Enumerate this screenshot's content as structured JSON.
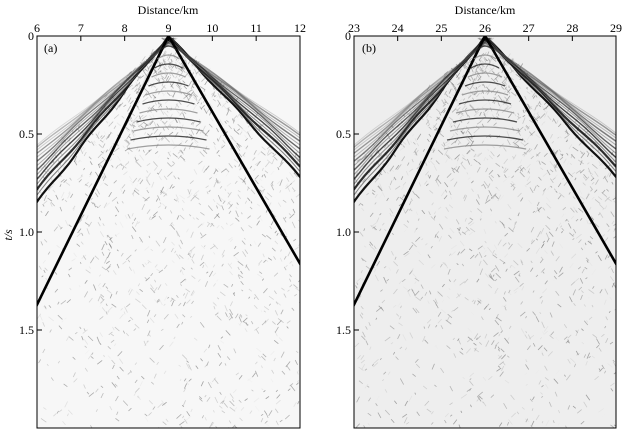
{
  "chart_data": [
    {
      "type": "heatmap",
      "panel_label": "(a)",
      "xlabel": "Distance/km",
      "ylabel": "t/s",
      "xlim": [
        6,
        12
      ],
      "ylim": [
        0,
        2.0
      ],
      "y_inverted": true,
      "x_ticks": [
        "6",
        "7",
        "8",
        "9",
        "10",
        "11",
        "12"
      ],
      "y_ticks": [
        "0",
        "0.5",
        "1.0",
        "1.5"
      ],
      "source_x_km": 9,
      "background": "#f7f7f7",
      "wavefield": "seismic shot gather, grayscale wiggle amplitudes, first-arrival cone centered at source"
    },
    {
      "type": "heatmap",
      "panel_label": "(b)",
      "xlabel": "Distance/km",
      "ylabel": "",
      "xlim": [
        23,
        29
      ],
      "ylim": [
        0,
        2.0
      ],
      "y_inverted": true,
      "x_ticks": [
        "23",
        "24",
        "25",
        "26",
        "27",
        "28",
        "29"
      ],
      "y_ticks": [
        "0",
        "0.5",
        "1.0",
        "1.5"
      ],
      "source_x_km": 26,
      "background": "#eeeeee",
      "wavefield": "seismic shot gather, grayscale wiggle amplitudes, first-arrival cone centered at source"
    }
  ]
}
